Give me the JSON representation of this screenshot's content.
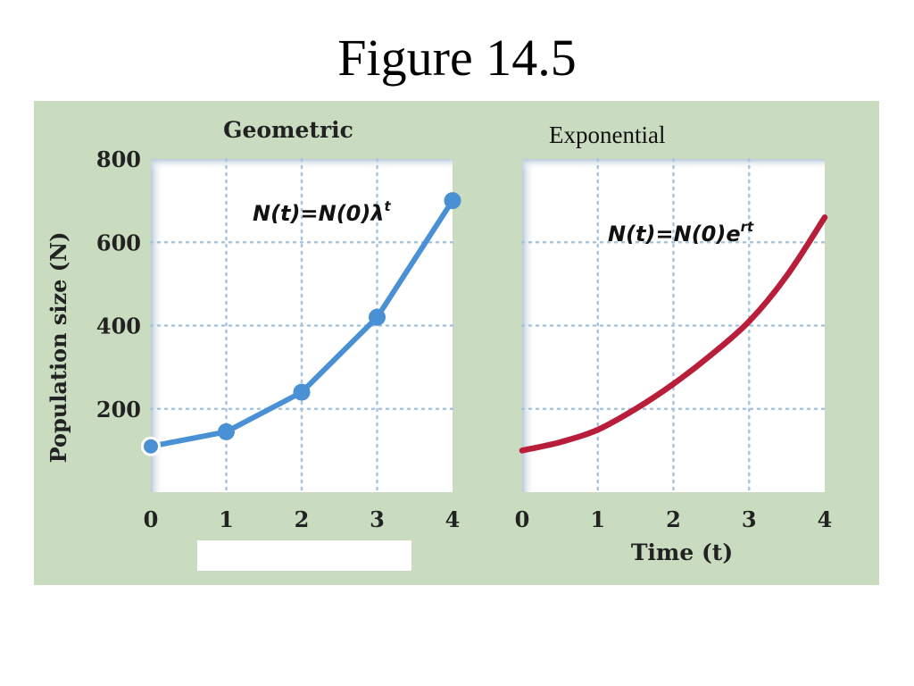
{
  "slide": {
    "title": "Figure 14.5"
  },
  "figure": {
    "ylabel": "Population size (N)",
    "xlabel": "Time (t)",
    "colors": {
      "background": "#c9dcc0",
      "geometric": "#4a90d4",
      "exponential": "#b81d3a",
      "plot_bg": "#ffffff",
      "grid": "#a8c4dd"
    }
  },
  "chart_data": [
    {
      "type": "line",
      "title": "Geometric",
      "equation": {
        "base": "N(t)=N(0)λ",
        "superscript": "t"
      },
      "xlabel": "",
      "ylabel": "Population size (N)",
      "x": [
        0,
        1,
        2,
        3,
        4
      ],
      "series": [
        {
          "values": [
            110,
            145,
            240,
            420,
            700
          ],
          "markers": true
        }
      ],
      "xticks": [
        "0",
        "1",
        "2",
        "3",
        "4"
      ],
      "yticks": [
        "200",
        "400",
        "600",
        "800"
      ],
      "xlim": [
        0,
        4
      ],
      "ylim": [
        0,
        800
      ],
      "grid": true
    },
    {
      "type": "line",
      "title": "Exponential",
      "equation": {
        "base": "N(t)=N(0)e",
        "superscript": "rt"
      },
      "xlabel": "Time (t)",
      "ylabel": "",
      "x": [
        0,
        0.5,
        1,
        1.5,
        2,
        2.5,
        3,
        3.5,
        4
      ],
      "series": [
        {
          "values": [
            100,
            120,
            150,
            200,
            260,
            330,
            410,
            520,
            660
          ],
          "markers": false
        }
      ],
      "xticks": [
        "0",
        "1",
        "2",
        "3",
        "4"
      ],
      "xlim": [
        0,
        4
      ],
      "ylim": [
        0,
        800
      ],
      "grid": true
    }
  ]
}
